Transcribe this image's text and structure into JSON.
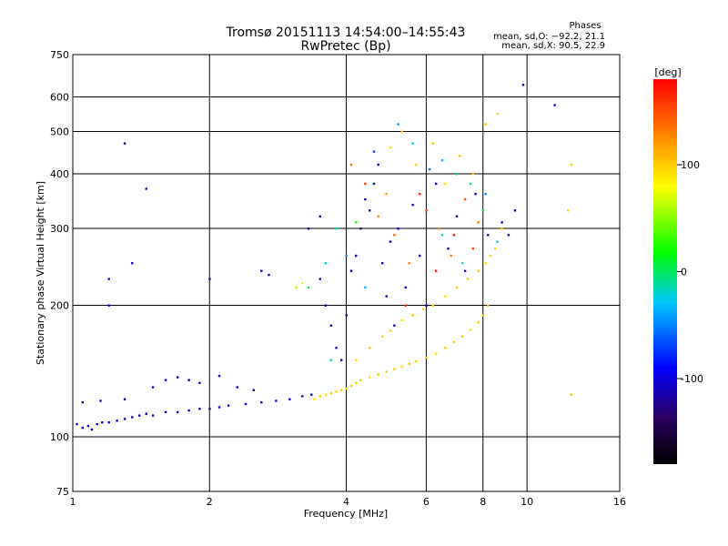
{
  "chart_data": {
    "type": "scatter",
    "title": "Tromsø 20151113 14:54:00–14:55:43",
    "subtitle": "RwPretec (Bp)",
    "xlabel": "Frequency [MHz]",
    "ylabel": "Stationary phase Virtual Height [km]",
    "x_scale": "log",
    "y_scale": "log",
    "xlim": [
      1,
      16
    ],
    "ylim": [
      75,
      750
    ],
    "x_ticks": [
      1,
      2,
      4,
      6,
      8,
      10,
      16
    ],
    "y_ticks": [
      75,
      100,
      200,
      300,
      400,
      500,
      600,
      750
    ],
    "grid": true,
    "stats": {
      "heading": "Phases",
      "o_line": "mean, sd,O: −92.2, 21.1",
      "x_line": "mean, sd,X:  90.5, 22.9"
    },
    "colorbar": {
      "label": "[deg]",
      "ticks": [
        100,
        0,
        -100
      ],
      "range": [
        -180,
        180
      ],
      "colors": [
        "#000000",
        "#2a0060",
        "#0000ff",
        "#00c8ff",
        "#00ff00",
        "#ffff00",
        "#ff8000",
        "#ff0000"
      ]
    },
    "series": [
      {
        "points": [
          [
            1.02,
            107,
            -95
          ],
          [
            1.05,
            105,
            -100
          ],
          [
            1.08,
            106,
            -90
          ],
          [
            1.1,
            104,
            -110
          ],
          [
            1.13,
            107,
            -95
          ],
          [
            1.16,
            108,
            -100
          ],
          [
            1.2,
            108,
            -90
          ],
          [
            1.25,
            109,
            -100
          ],
          [
            1.3,
            110,
            -95
          ],
          [
            1.35,
            111,
            -105
          ],
          [
            1.4,
            112,
            -90
          ],
          [
            1.45,
            113,
            -100
          ],
          [
            1.5,
            112,
            -95
          ],
          [
            1.6,
            114,
            -100
          ],
          [
            1.7,
            114,
            -90
          ],
          [
            1.8,
            115,
            -100
          ],
          [
            1.9,
            116,
            -95
          ],
          [
            2.0,
            116,
            -100
          ],
          [
            2.1,
            117,
            -90
          ],
          [
            2.2,
            118,
            -100
          ],
          [
            2.4,
            119,
            -95
          ],
          [
            2.6,
            120,
            -100
          ],
          [
            2.8,
            121,
            -90
          ],
          [
            3.0,
            122,
            -100
          ],
          [
            3.2,
            124,
            -95
          ],
          [
            3.35,
            125,
            -100
          ],
          [
            1.05,
            120,
            -110
          ],
          [
            1.15,
            121,
            -100
          ],
          [
            1.3,
            122,
            -105
          ],
          [
            1.5,
            130,
            -100
          ],
          [
            1.6,
            135,
            -95
          ],
          [
            1.7,
            137,
            -100
          ],
          [
            1.8,
            135,
            -110
          ],
          [
            1.9,
            133,
            -90
          ],
          [
            2.1,
            138,
            -100
          ],
          [
            2.3,
            130,
            -95
          ],
          [
            2.5,
            128,
            -100
          ],
          [
            3.3,
            300,
            -110
          ],
          [
            3.5,
            320,
            -100
          ],
          [
            3.5,
            230,
            -100
          ],
          [
            3.6,
            200,
            -95
          ],
          [
            3.7,
            180,
            -100
          ],
          [
            3.8,
            160,
            -110
          ],
          [
            3.9,
            150,
            -90
          ],
          [
            4.0,
            190,
            -100
          ],
          [
            4.1,
            240,
            -95
          ],
          [
            4.2,
            260,
            -100
          ],
          [
            4.3,
            300,
            -110
          ],
          [
            4.4,
            350,
            -100
          ],
          [
            4.5,
            330,
            -95
          ],
          [
            4.6,
            380,
            -100
          ],
          [
            4.7,
            420,
            -90
          ],
          [
            4.8,
            250,
            -100
          ],
          [
            4.9,
            210,
            -95
          ],
          [
            5.0,
            280,
            -100
          ],
          [
            5.1,
            180,
            -110
          ],
          [
            5.2,
            300,
            -100
          ],
          [
            5.4,
            220,
            -95
          ],
          [
            5.6,
            340,
            -100
          ],
          [
            5.8,
            260,
            -90
          ],
          [
            6.0,
            200,
            -100
          ],
          [
            6.3,
            380,
            -95
          ],
          [
            6.7,
            270,
            -100
          ],
          [
            7.0,
            320,
            -110
          ],
          [
            7.3,
            240,
            -100
          ],
          [
            7.7,
            360,
            -95
          ],
          [
            8.2,
            290,
            -100
          ],
          [
            8.8,
            310,
            -100
          ],
          [
            9.1,
            290,
            -95
          ],
          [
            9.4,
            330,
            -100
          ],
          [
            9.8,
            640,
            -110
          ],
          [
            11.5,
            575,
            -100
          ],
          [
            1.3,
            470,
            -110
          ],
          [
            1.35,
            250,
            -100
          ],
          [
            1.45,
            370,
            -95
          ],
          [
            1.2,
            230,
            -100
          ],
          [
            1.2,
            200,
            -95
          ],
          [
            2.6,
            240,
            -100
          ],
          [
            2.7,
            235,
            -110
          ],
          [
            2.0,
            230,
            -100
          ],
          [
            4.6,
            450,
            -60
          ],
          [
            5.2,
            520,
            -40
          ],
          [
            5.6,
            470,
            -20
          ],
          [
            6.1,
            410,
            -50
          ],
          [
            6.5,
            430,
            -30
          ],
          [
            7.0,
            400,
            -10
          ],
          [
            7.5,
            380,
            0
          ],
          [
            8.1,
            360,
            -45
          ],
          [
            3.3,
            220,
            20
          ],
          [
            3.6,
            250,
            -20
          ],
          [
            3.7,
            150,
            -10
          ],
          [
            3.8,
            300,
            0
          ],
          [
            4.0,
            260,
            -40
          ],
          [
            4.2,
            310,
            30
          ],
          [
            4.4,
            220,
            -30
          ],
          [
            6.5,
            290,
            0
          ],
          [
            7.2,
            250,
            -20
          ],
          [
            8.0,
            330,
            20
          ],
          [
            8.6,
            280,
            -15
          ]
        ]
      },
      {
        "points": [
          [
            3.1,
            220,
            60
          ],
          [
            3.2,
            225,
            70
          ],
          [
            3.4,
            122,
            90
          ],
          [
            3.5,
            124,
            100
          ],
          [
            3.6,
            125,
            90
          ],
          [
            3.7,
            126,
            100
          ],
          [
            3.8,
            127,
            95
          ],
          [
            3.9,
            128,
            100
          ],
          [
            4.0,
            129,
            90
          ],
          [
            4.1,
            131,
            100
          ],
          [
            4.2,
            133,
            95
          ],
          [
            4.3,
            135,
            100
          ],
          [
            4.5,
            137,
            90
          ],
          [
            4.7,
            139,
            100
          ],
          [
            4.9,
            141,
            95
          ],
          [
            5.1,
            143,
            100
          ],
          [
            5.3,
            145,
            90
          ],
          [
            5.5,
            147,
            100
          ],
          [
            5.7,
            149,
            95
          ],
          [
            6.0,
            152,
            100
          ],
          [
            6.3,
            155,
            90
          ],
          [
            6.6,
            160,
            100
          ],
          [
            6.9,
            165,
            95
          ],
          [
            7.2,
            170,
            100
          ],
          [
            7.5,
            176,
            90
          ],
          [
            7.8,
            183,
            100
          ],
          [
            8.0,
            190,
            95
          ],
          [
            8.2,
            200,
            100
          ],
          [
            4.2,
            150,
            90
          ],
          [
            4.5,
            160,
            100
          ],
          [
            4.8,
            170,
            95
          ],
          [
            5.0,
            175,
            100
          ],
          [
            5.3,
            185,
            90
          ],
          [
            5.6,
            190,
            100
          ],
          [
            5.9,
            196,
            95
          ],
          [
            6.2,
            200,
            100
          ],
          [
            6.6,
            210,
            90
          ],
          [
            7.0,
            220,
            100
          ],
          [
            7.4,
            230,
            95
          ],
          [
            7.8,
            240,
            100
          ],
          [
            8.1,
            250,
            90
          ],
          [
            8.3,
            260,
            100
          ],
          [
            8.5,
            270,
            95
          ],
          [
            8.8,
            300,
            100
          ],
          [
            5.0,
            460,
            90
          ],
          [
            5.3,
            500,
            100
          ],
          [
            5.7,
            420,
            95
          ],
          [
            6.2,
            470,
            100
          ],
          [
            6.6,
            380,
            90
          ],
          [
            7.1,
            440,
            100
          ],
          [
            7.6,
            400,
            95
          ],
          [
            8.1,
            520,
            100
          ],
          [
            8.6,
            550,
            90
          ],
          [
            12.5,
            420,
            100
          ],
          [
            12.3,
            330,
            95
          ],
          [
            12.5,
            125,
            100
          ],
          [
            4.7,
            320,
            120
          ],
          [
            5.1,
            290,
            140
          ],
          [
            5.5,
            250,
            130
          ],
          [
            6.0,
            330,
            150
          ],
          [
            6.4,
            300,
            125
          ],
          [
            6.8,
            260,
            135
          ],
          [
            7.3,
            350,
            145
          ],
          [
            7.8,
            310,
            130
          ],
          [
            4.4,
            380,
            160
          ],
          [
            5.8,
            360,
            170
          ],
          [
            6.9,
            290,
            175
          ],
          [
            5.4,
            200,
            165
          ],
          [
            4.1,
            420,
            130
          ],
          [
            4.9,
            360,
            115
          ],
          [
            6.3,
            240,
            170
          ],
          [
            7.6,
            270,
            160
          ]
        ]
      }
    ]
  }
}
